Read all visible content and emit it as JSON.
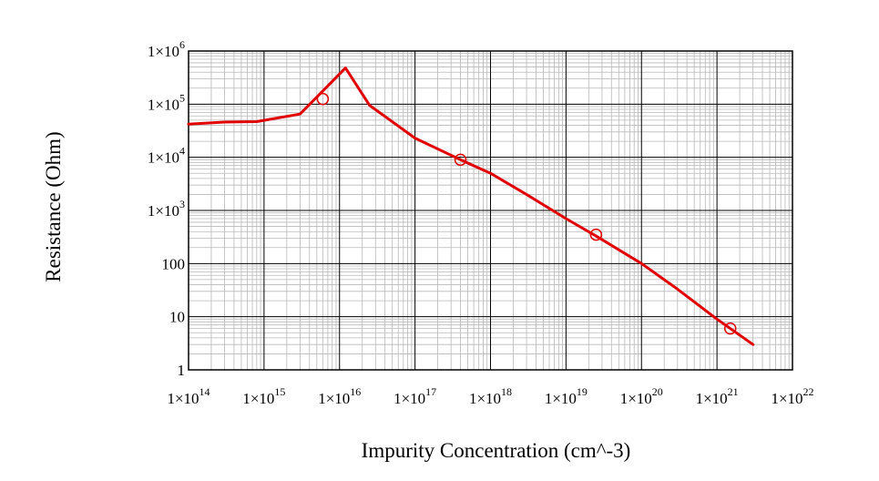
{
  "chart_data": {
    "type": "line",
    "title": "",
    "xlabel": "Impurity Concentration (cm^-3)",
    "ylabel": "Resistance (Ohm)",
    "x_scale": "log",
    "y_scale": "log",
    "xlim": [
      100000000000000.0,
      1e+22
    ],
    "ylim": [
      1,
      1000000.0
    ],
    "grid": true,
    "legend": "none",
    "x_ticks": [
      {
        "value": 100000000000000.0,
        "mantissa": "1×10",
        "exp": "14"
      },
      {
        "value": 1000000000000000.0,
        "mantissa": "1×10",
        "exp": "15"
      },
      {
        "value": 1e+16,
        "mantissa": "1×10",
        "exp": "16"
      },
      {
        "value": 1e+17,
        "mantissa": "1×10",
        "exp": "17"
      },
      {
        "value": 1e+18,
        "mantissa": "1×10",
        "exp": "18"
      },
      {
        "value": 1e+19,
        "mantissa": "1×10",
        "exp": "19"
      },
      {
        "value": 1e+20,
        "mantissa": "1×10",
        "exp": "20"
      },
      {
        "value": 1e+21,
        "mantissa": "1×10",
        "exp": "21"
      },
      {
        "value": 1e+22,
        "mantissa": "1×10",
        "exp": "22"
      }
    ],
    "y_ticks": [
      {
        "value": 1,
        "mantissa": "1",
        "exp": ""
      },
      {
        "value": 10,
        "mantissa": "10",
        "exp": ""
      },
      {
        "value": 100,
        "mantissa": "100",
        "exp": ""
      },
      {
        "value": 1000,
        "mantissa": "1×10",
        "exp": "3"
      },
      {
        "value": 10000,
        "mantissa": "1×10",
        "exp": "4"
      },
      {
        "value": 100000,
        "mantissa": "1×10",
        "exp": "5"
      },
      {
        "value": 1000000,
        "mantissa": "1×10",
        "exp": "6"
      }
    ],
    "series": [
      {
        "color": "#e00000",
        "x": [
          100000000000000.0,
          300000000000000.0,
          800000000000000.0,
          3000000000000000.0,
          1.2e+16,
          2.5e+16,
          1e+17,
          4e+17,
          1e+18,
          3e+18,
          1e+19,
          2.5e+19,
          1e+20,
          3e+20,
          1e+21,
          3e+21
        ],
        "y": [
          42000,
          46000,
          47000,
          65000,
          480000,
          95000,
          23000,
          9000,
          5000,
          2000,
          700,
          330,
          100,
          33,
          9,
          3
        ],
        "marker_x": [
          6000000000000000.0,
          4e+17,
          2.5e+19,
          1.5e+21
        ],
        "marker_y": [
          125000,
          9000,
          350,
          6
        ]
      }
    ]
  }
}
